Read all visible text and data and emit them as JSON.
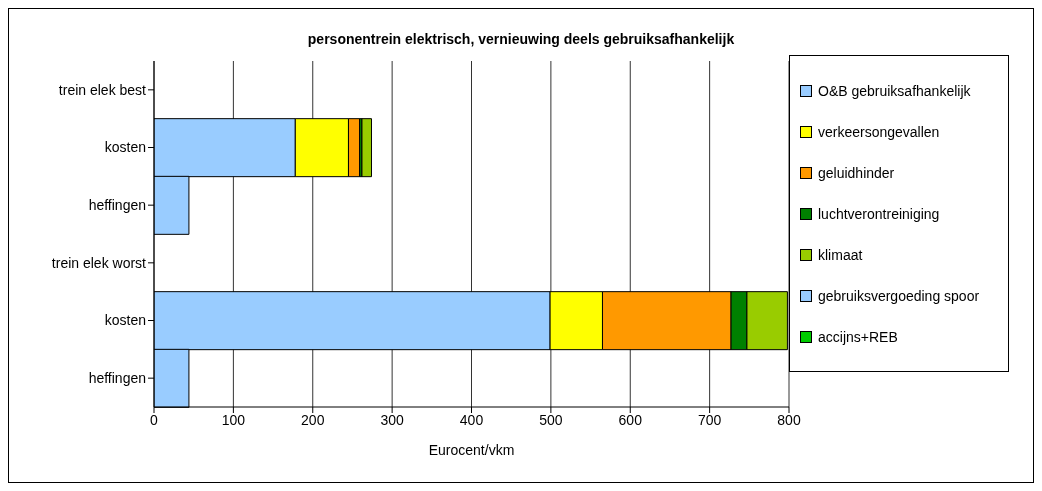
{
  "chart_data": {
    "type": "bar",
    "title": "personentrein elektrisch, vernieuwing deels gebruiksafhankelijk",
    "orientation": "horizontal",
    "stacked": true,
    "xlabel": "Eurocent/vkm",
    "categories": [
      "trein elek best",
      "kosten",
      "heffingen",
      "trein elek worst",
      "kosten",
      "heffingen"
    ],
    "series": [
      {
        "name": "O&B gebruiksafhankelijk",
        "color": "#99ccff",
        "values": [
          null,
          178,
          null,
          null,
          499,
          null
        ]
      },
      {
        "name": "verkeersongevallen",
        "color": "#ffff00",
        "values": [
          null,
          67,
          null,
          null,
          66,
          null
        ]
      },
      {
        "name": "geluidhinder",
        "color": "#ff9900",
        "values": [
          null,
          14,
          null,
          null,
          162,
          null
        ]
      },
      {
        "name": "luchtverontreiniging",
        "color": "#008000",
        "values": [
          null,
          3,
          null,
          null,
          20,
          null
        ]
      },
      {
        "name": "klimaat",
        "color": "#99cc00",
        "values": [
          null,
          12,
          null,
          null,
          51,
          null
        ]
      },
      {
        "name": "gebruiksvergoeding spoor",
        "color": "#99ccff",
        "values": [
          null,
          null,
          44,
          null,
          null,
          44
        ]
      },
      {
        "name": "accijns+REB",
        "color": "#00cc00",
        "values": [
          null,
          null,
          null,
          null,
          null,
          null
        ]
      }
    ],
    "xlim": [
      0,
      800
    ],
    "xticks": [
      0,
      100,
      200,
      300,
      400,
      500,
      600,
      700,
      800
    ],
    "grid": "x",
    "legend": "right"
  }
}
